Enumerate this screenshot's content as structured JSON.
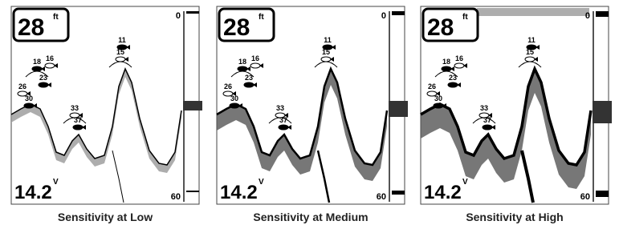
{
  "panels": [
    {
      "caption": "Sensitivity at Low",
      "depth": "28",
      "depth_unit": "ft",
      "battery": "14.2",
      "battery_unit": "V",
      "scale_top": "0",
      "scale_bottom": "60",
      "fish": [
        "11",
        "15",
        "18",
        "16",
        "23",
        "26",
        "30",
        "33",
        "37"
      ]
    },
    {
      "caption": "Sensitivity at Medium",
      "depth": "28",
      "depth_unit": "ft",
      "battery": "14.2",
      "battery_unit": "V",
      "scale_top": "0",
      "scale_bottom": "60",
      "fish": [
        "11",
        "15",
        "18",
        "16",
        "23",
        "26",
        "30",
        "33",
        "37"
      ]
    },
    {
      "caption": "Sensitivity at High",
      "depth": "28",
      "depth_unit": "ft",
      "battery": "14.2",
      "battery_unit": "V",
      "scale_top": "0",
      "scale_bottom": "60",
      "fish": [
        "11",
        "15",
        "18",
        "16",
        "23",
        "26",
        "30",
        "33",
        "37"
      ]
    }
  ]
}
